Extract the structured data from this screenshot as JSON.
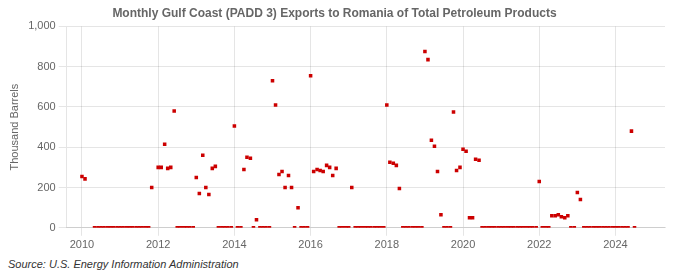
{
  "chart_data": {
    "type": "scatter",
    "title": "Monthly Gulf Coast (PADD 3) Exports to Romania of Total Petroleum Products",
    "y_label": "Thousand Barrels",
    "annotations": [
      "Source: U.S. Energy Information Administration"
    ],
    "color": "#cc0000",
    "marker": "square",
    "grid": true,
    "xlim": [
      2009.6,
      2025.3
    ],
    "xticks": [
      2010,
      2012,
      2014,
      2016,
      2018,
      2020,
      2022,
      2024
    ],
    "ylim": [
      0,
      1000
    ],
    "yticks": [
      0,
      200,
      400,
      600,
      800,
      {
        "value": 1000,
        "label": "1,000"
      }
    ],
    "x": [
      2010.0,
      2010.08,
      2010.33,
      2010.42,
      2010.5,
      2010.58,
      2010.67,
      2010.75,
      2010.83,
      2010.92,
      2011.0,
      2011.08,
      2011.17,
      2011.25,
      2011.33,
      2011.42,
      2011.5,
      2011.58,
      2011.67,
      2011.75,
      2011.83,
      2012.0,
      2012.08,
      2012.17,
      2012.25,
      2012.33,
      2012.42,
      2012.5,
      2012.58,
      2012.67,
      2012.75,
      2012.83,
      2012.92,
      2013.0,
      2013.08,
      2013.17,
      2013.25,
      2013.33,
      2013.42,
      2013.5,
      2013.58,
      2013.67,
      2013.75,
      2013.83,
      2013.92,
      2014.0,
      2014.08,
      2014.17,
      2014.25,
      2014.33,
      2014.42,
      2014.5,
      2014.58,
      2014.67,
      2014.75,
      2014.83,
      2014.92,
      2015.0,
      2015.08,
      2015.17,
      2015.25,
      2015.33,
      2015.42,
      2015.5,
      2015.58,
      2015.67,
      2015.75,
      2015.83,
      2015.92,
      2016.0,
      2016.08,
      2016.17,
      2016.25,
      2016.33,
      2016.42,
      2016.5,
      2016.58,
      2016.67,
      2016.75,
      2016.83,
      2016.92,
      2017.0,
      2017.08,
      2017.17,
      2017.25,
      2017.33,
      2017.42,
      2017.5,
      2017.58,
      2017.67,
      2017.75,
      2017.83,
      2017.92,
      2018.0,
      2018.08,
      2018.17,
      2018.25,
      2018.33,
      2018.42,
      2018.5,
      2018.58,
      2018.67,
      2018.75,
      2018.83,
      2018.92,
      2019.0,
      2019.08,
      2019.17,
      2019.25,
      2019.33,
      2019.42,
      2019.5,
      2019.58,
      2019.67,
      2019.75,
      2019.83,
      2019.92,
      2020.0,
      2020.08,
      2020.17,
      2020.25,
      2020.33,
      2020.42,
      2020.5,
      2020.58,
      2020.67,
      2020.75,
      2020.83,
      2020.92,
      2021.0,
      2021.08,
      2021.17,
      2021.25,
      2021.33,
      2021.42,
      2021.5,
      2021.58,
      2021.67,
      2021.75,
      2021.83,
      2021.92,
      2022.0,
      2022.08,
      2022.17,
      2022.25,
      2022.33,
      2022.42,
      2022.5,
      2022.58,
      2022.67,
      2022.75,
      2022.83,
      2022.92,
      2023.0,
      2023.08,
      2023.17,
      2023.25,
      2023.33,
      2023.42,
      2023.5,
      2023.58,
      2023.67,
      2023.75,
      2023.83,
      2023.92,
      2024.0,
      2024.08,
      2024.17,
      2024.25,
      2024.33,
      2024.42,
      2024.5
    ],
    "values": [
      255,
      243,
      0,
      0,
      0,
      0,
      0,
      0,
      0,
      0,
      0,
      0,
      0,
      0,
      0,
      0,
      0,
      0,
      0,
      0,
      200,
      300,
      300,
      415,
      295,
      300,
      580,
      0,
      0,
      0,
      0,
      0,
      0,
      250,
      170,
      360,
      200,
      165,
      295,
      305,
      0,
      0,
      0,
      0,
      0,
      505,
      0,
      0,
      290,
      350,
      345,
      0,
      40,
      0,
      0,
      0,
      0,
      730,
      610,
      265,
      280,
      200,
      260,
      200,
      0,
      100,
      0,
      0,
      0,
      755,
      280,
      290,
      285,
      280,
      310,
      300,
      260,
      295,
      0,
      0,
      0,
      0,
      200,
      0,
      0,
      0,
      0,
      0,
      0,
      0,
      0,
      0,
      0,
      610,
      325,
      320,
      310,
      195,
      0,
      0,
      0,
      0,
      0,
      0,
      0,
      875,
      835,
      435,
      405,
      280,
      65,
      0,
      0,
      0,
      575,
      285,
      300,
      390,
      380,
      50,
      50,
      340,
      335,
      0,
      0,
      0,
      0,
      0,
      0,
      0,
      0,
      0,
      0,
      0,
      0,
      0,
      0,
      0,
      0,
      0,
      0,
      230,
      0,
      0,
      0,
      60,
      60,
      65,
      55,
      50,
      60,
      0,
      0,
      175,
      140,
      0,
      0,
      0,
      0,
      0,
      0,
      0,
      0,
      0,
      0,
      0,
      0,
      0,
      0,
      0,
      480,
      0
    ]
  }
}
